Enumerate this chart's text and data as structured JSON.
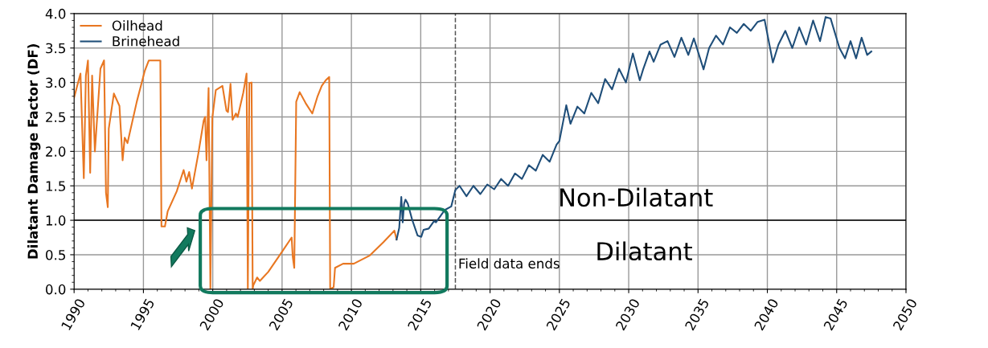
{
  "chart_data": {
    "type": "line",
    "ylabel": "Dilatant Damage Factor (DF)",
    "xlim": [
      1990,
      2050
    ],
    "xticks": [
      1990,
      1995,
      2000,
      2005,
      2010,
      2015,
      2020,
      2025,
      2030,
      2035,
      2040,
      2045,
      2050
    ],
    "ylim": [
      0,
      4
    ],
    "yticks": [
      {
        "value": 0,
        "label": "0.0"
      },
      {
        "value": 0.5,
        "label": "0.5"
      },
      {
        "value": 1,
        "label": "1.0"
      },
      {
        "value": 1.5,
        "label": "1.5"
      },
      {
        "value": 2,
        "label": "2.0"
      },
      {
        "value": 2.5,
        "label": "2.5"
      },
      {
        "value": 3,
        "label": "3.0"
      },
      {
        "value": 3.5,
        "label": "3.5"
      },
      {
        "value": 4,
        "label": "4.0"
      }
    ],
    "grid": true,
    "legend": "top left",
    "marker": "none",
    "line_style": "solid",
    "series": [
      {
        "name": "Oilhead",
        "color": "#e87722",
        "x": [
          1990.0,
          1990.46,
          1990.7,
          1990.85,
          1991.0,
          1991.16,
          1991.3,
          1991.5,
          1991.9,
          1992.16,
          1992.3,
          1992.43,
          1992.5,
          1992.87,
          1993.27,
          1993.5,
          1993.65,
          1993.85,
          1994.52,
          1995.1,
          1995.39,
          1996.22,
          1996.3,
          1996.55,
          1996.75,
          1997.4,
          1997.9,
          1998.1,
          1998.3,
          1998.5,
          1998.97,
          1999.35,
          1999.45,
          1999.55,
          1999.7,
          1999.83,
          1999.97,
          2000.22,
          2000.7,
          2000.99,
          2001.1,
          2001.28,
          2001.43,
          2001.67,
          2001.8,
          2002.2,
          2002.44,
          2002.53,
          2002.64,
          2002.8,
          2002.88,
          2002.93,
          2003.2,
          2003.4,
          2004.0,
          2005.05,
          2005.69,
          2005.77,
          2005.88,
          2006.02,
          2006.27,
          2006.7,
          2007.18,
          2007.56,
          2007.86,
          2008.14,
          2008.4,
          2008.47,
          2008.72,
          2008.82,
          2009.4,
          2010.17,
          2011.33,
          2012.3,
          2013.1,
          2013.26
        ],
        "values": [
          2.78,
          3.13,
          1.61,
          3.1,
          3.32,
          1.69,
          3.1,
          2.0,
          3.2,
          3.32,
          1.4,
          1.19,
          2.33,
          2.84,
          2.66,
          1.87,
          2.2,
          2.12,
          2.72,
          3.17,
          3.32,
          3.32,
          0.91,
          0.91,
          1.13,
          1.42,
          1.73,
          1.56,
          1.7,
          1.46,
          1.98,
          2.45,
          2.5,
          1.87,
          2.92,
          0.0,
          2.49,
          2.89,
          2.95,
          2.59,
          2.57,
          2.98,
          2.46,
          2.55,
          2.5,
          2.85,
          3.13,
          0.0,
          2.99,
          3.0,
          0.0,
          0.06,
          0.17,
          0.12,
          0.25,
          0.56,
          0.75,
          0.47,
          0.31,
          2.72,
          2.86,
          2.7,
          2.55,
          2.8,
          2.95,
          3.03,
          3.08,
          0.0,
          0.03,
          0.31,
          0.37,
          0.37,
          0.49,
          0.68,
          0.85,
          0.72
        ]
      },
      {
        "name": "Brinehead",
        "color": "#1f4e79",
        "x": [
          2013.26,
          2013.45,
          2013.6,
          2013.7,
          2013.8,
          2013.9,
          2014.07,
          2014.38,
          2014.77,
          2015.04,
          2015.2,
          2015.58,
          2015.97,
          2016.1,
          2016.74,
          2017.2,
          2017.5,
          2017.8,
          2018.3,
          2018.8,
          2019.3,
          2019.8,
          2020.3,
          2020.8,
          2021.3,
          2021.8,
          2022.3,
          2022.8,
          2023.3,
          2023.8,
          2024.3,
          2024.8,
          2025.0,
          2025.5,
          2025.8,
          2026.3,
          2026.8,
          2027.3,
          2027.8,
          2028.3,
          2028.8,
          2029.3,
          2029.8,
          2030.3,
          2030.8,
          2031.04,
          2031.5,
          2031.8,
          2032.3,
          2032.8,
          2033.3,
          2033.8,
          2034.3,
          2034.7,
          2035.4,
          2035.8,
          2036.3,
          2036.8,
          2037.3,
          2037.8,
          2038.3,
          2038.8,
          2039.3,
          2039.8,
          2040.4,
          2040.8,
          2041.3,
          2041.8,
          2042.3,
          2042.8,
          2043.3,
          2043.8,
          2044.2,
          2044.56,
          2045.2,
          2045.6,
          2046.0,
          2046.4,
          2046.8,
          2047.2,
          2047.5
        ],
        "values": [
          0.72,
          0.89,
          1.34,
          0.97,
          1.24,
          1.3,
          1.24,
          1.01,
          0.78,
          0.76,
          0.86,
          0.88,
          0.99,
          0.97,
          1.15,
          1.2,
          1.44,
          1.5,
          1.35,
          1.5,
          1.38,
          1.52,
          1.45,
          1.6,
          1.5,
          1.68,
          1.6,
          1.8,
          1.72,
          1.95,
          1.85,
          2.1,
          2.15,
          2.67,
          2.4,
          2.65,
          2.55,
          2.85,
          2.7,
          3.05,
          2.9,
          3.2,
          3.0,
          3.42,
          3.03,
          3.19,
          3.45,
          3.3,
          3.55,
          3.6,
          3.37,
          3.65,
          3.4,
          3.64,
          3.19,
          3.5,
          3.68,
          3.55,
          3.8,
          3.72,
          3.85,
          3.75,
          3.88,
          3.91,
          3.29,
          3.55,
          3.75,
          3.5,
          3.8,
          3.55,
          3.9,
          3.6,
          3.95,
          3.93,
          3.5,
          3.35,
          3.6,
          3.35,
          3.65,
          3.4,
          3.45
        ]
      }
    ],
    "ref_lines": [
      {
        "axis": "y",
        "value": 1.0,
        "color": "#000000",
        "line_style": "solid"
      },
      {
        "axis": "x",
        "value": 2017.5,
        "label": "Field data ends",
        "color": "#555555",
        "line_style": "dashed"
      }
    ],
    "annotations": [
      "Non-Dilatant",
      "Dilatant"
    ]
  }
}
